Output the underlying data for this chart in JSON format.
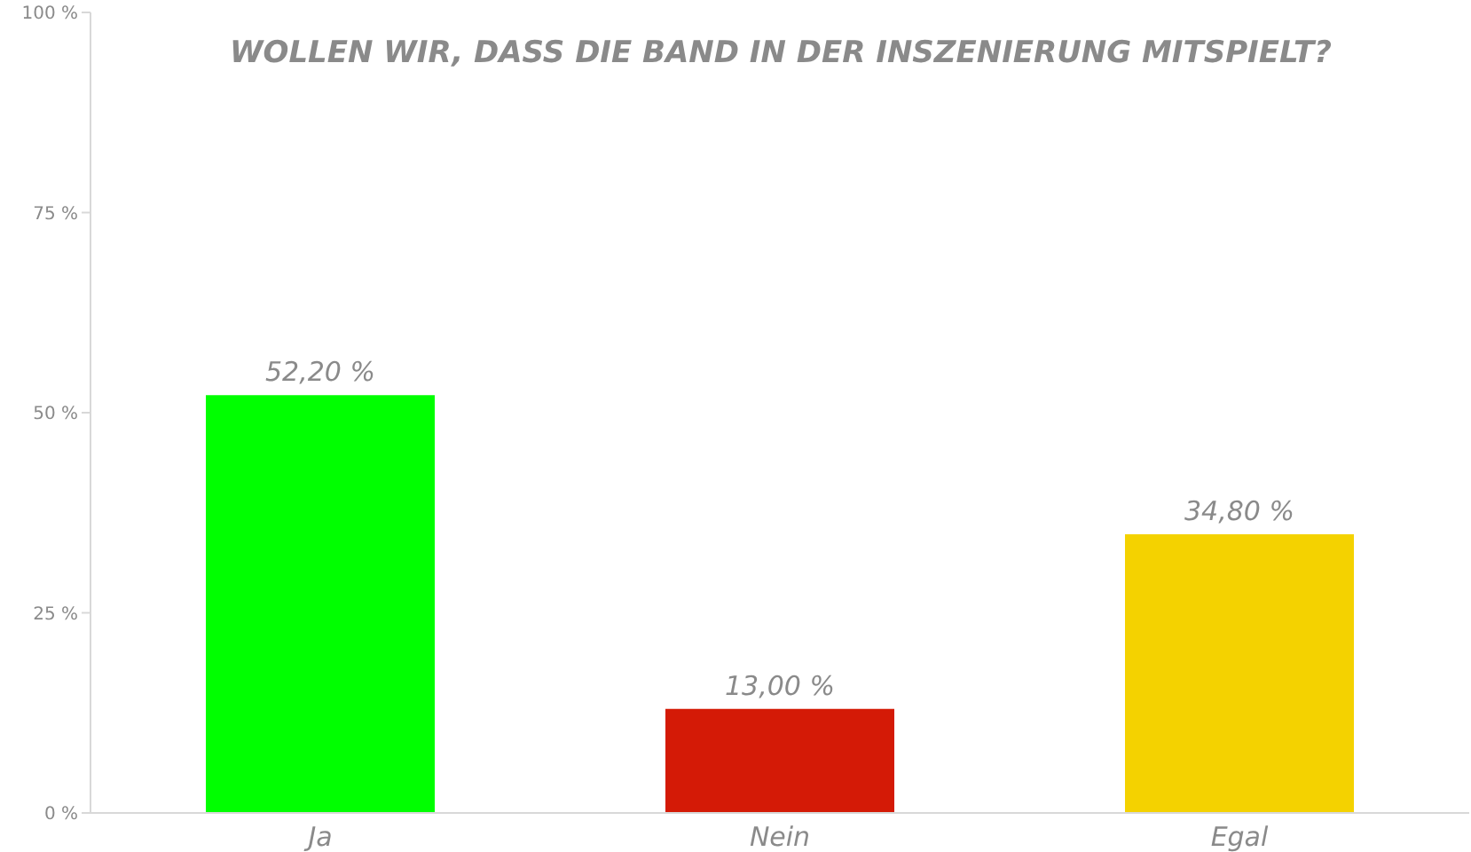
{
  "chart_data": {
    "type": "bar",
    "title": "WOLLEN WIR, DASS DIE BAND IN DER INSZENIERUNG MITSPIELT?",
    "categories": [
      "Ja",
      "Nein",
      "Egal"
    ],
    "values": [
      52.2,
      13.0,
      34.8
    ],
    "colors": [
      "#00ff00",
      "#d41a06",
      "#f4d200"
    ],
    "value_labels": [
      "52,20 %",
      "13,00 %",
      "34,80 %"
    ],
    "ylim": [
      0,
      100
    ],
    "yticks": [
      {
        "value": 0,
        "label": "0 %"
      },
      {
        "value": 25,
        "label": "25 %"
      },
      {
        "value": 50,
        "label": "50 %"
      },
      {
        "value": 75,
        "label": "75 %"
      },
      {
        "value": 100,
        "label": "100 %"
      }
    ],
    "grid": false
  }
}
